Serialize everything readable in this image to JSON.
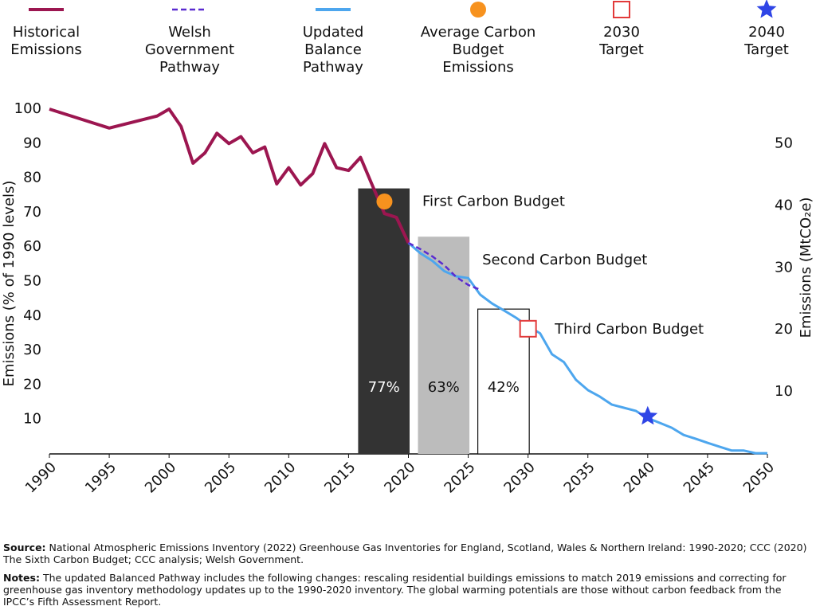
{
  "chart_data": {
    "type": "line",
    "xlabel": null,
    "ylabel": "Emissions (% of 1990 levels)",
    "y2label": "Emissions (MtCO₂e)",
    "xlim": [
      1990,
      2050
    ],
    "xticks": [
      1990,
      1995,
      2000,
      2005,
      2010,
      2015,
      2020,
      2025,
      2030,
      2035,
      2040,
      2045,
      2050
    ],
    "ylim": [
      0,
      100
    ],
    "yticks": [
      10,
      20,
      30,
      40,
      50,
      60,
      70,
      80,
      90,
      100
    ],
    "y2lim": [
      0,
      55.6
    ],
    "y2ticks": [
      10,
      20,
      30,
      40,
      50
    ],
    "grid": false,
    "legend": "top",
    "series": [
      {
        "name": "Historical Emissions",
        "color": "#9c1650",
        "style": "solid",
        "x": [
          1990,
          1995,
          1999,
          2000,
          2001,
          2002,
          2003,
          2004,
          2005,
          2006,
          2007,
          2008,
          2009,
          2010,
          2011,
          2012,
          2013,
          2014,
          2015,
          2016,
          2017,
          2018,
          2019,
          2020
        ],
        "values": [
          100,
          94.5,
          98,
          100,
          95,
          84.3,
          87.3,
          93,
          90,
          92,
          87.3,
          89,
          78.3,
          83,
          78,
          81.3,
          90,
          83,
          82.2,
          86,
          77.8,
          69.7,
          68.6,
          61.2
        ]
      },
      {
        "name": "Welsh Government Pathway",
        "color": "#5a2bd0",
        "style": "dashed",
        "x": [
          2020,
          2021,
          2022,
          2023,
          2024,
          2025,
          2026
        ],
        "values": [
          61.2,
          59.4,
          57.3,
          54.7,
          51.3,
          49,
          47.6
        ]
      },
      {
        "name": "Updated Balance Pathway",
        "color": "#4da6ee",
        "style": "solid",
        "x": [
          2020,
          2021,
          2022,
          2023,
          2024,
          2025,
          2026,
          2027,
          2028,
          2029,
          2030,
          2031,
          2032,
          2033,
          2034,
          2035,
          2036,
          2037,
          2038,
          2039,
          2040,
          2041,
          2042,
          2043,
          2044,
          2045,
          2046,
          2047,
          2048,
          2049,
          2050
        ],
        "values": [
          61.2,
          58.2,
          56,
          53,
          51.5,
          51,
          46.2,
          43.6,
          41.6,
          39.5,
          37,
          35,
          28.9,
          26.6,
          21.5,
          18.5,
          16.6,
          14.3,
          13.4,
          12.5,
          10.4,
          9,
          7.6,
          5.5,
          4.4,
          3.2,
          2.1,
          1,
          1,
          0.2,
          0.2
        ]
      },
      {
        "name": "Average Carbon Budget Emissions",
        "color": "#f7921e",
        "marker": "circle",
        "x": [
          2018
        ],
        "values": [
          73.2
        ]
      },
      {
        "name": "2030 Target",
        "color": "#e23a3a",
        "marker": "square",
        "x": [
          2030
        ],
        "values": [
          36.3
        ]
      },
      {
        "name": "2040 Target",
        "color": "#2f45e6",
        "marker": "star",
        "x": [
          2040
        ],
        "values": [
          10.9
        ]
      }
    ],
    "bars": {
      "names": [
        "First Carbon Budget",
        "Second Carbon Budget",
        "Third Carbon Budget"
      ],
      "x_start": [
        2015.8,
        2020.8,
        2025.8
      ],
      "x_end": [
        2020.1,
        2025.1,
        2030.1
      ],
      "values": [
        77,
        63,
        42
      ],
      "value_labels": [
        "77%",
        "63%",
        "42%"
      ],
      "colors": [
        "#333333",
        "#bcbcbc",
        "#ffffff"
      ]
    }
  },
  "footer": {
    "source_label": "Source:",
    "source": "National Atmospheric Emissions Inventory (2022) Greenhouse Gas Inventories for England, Scotland, Wales & Northern Ireland: 1990-2020; CCC (2020) The Sixth Carbon Budget; CCC analysis; Welsh Government.",
    "notes_label": "Notes:",
    "notes": "The updated Balanced Pathway includes the following changes: rescaling residential buildings emissions to match 2019 emissions and correcting for greenhouse gas inventory methodology updates up to the 1990-2020 inventory. The global warming potentials are those without carbon feedback from the IPCC’s Fifth Assessment Report."
  }
}
